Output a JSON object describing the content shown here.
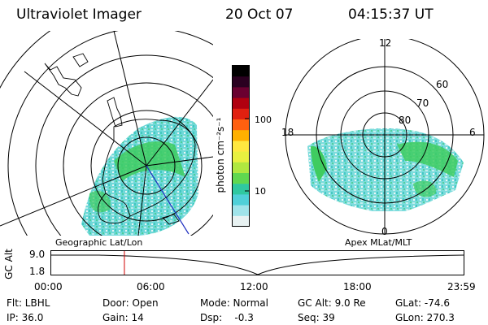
{
  "header": {
    "title": "Ultraviolet Imager",
    "date": "20 Oct 07",
    "time": "04:15:37 UT"
  },
  "left_panel": {
    "label": "Geographic Lat/Lon"
  },
  "right_panel": {
    "label": "Apex MLat/MLT",
    "mlt_labels": {
      "top": "12",
      "left": "18",
      "right": "6",
      "bottom": "0"
    },
    "lat_labels": [
      "60",
      "70",
      "80"
    ]
  },
  "colorbar": {
    "unit_label": "photon cm⁻²s⁻¹",
    "tick_labels": [
      "100",
      "10"
    ],
    "colors": [
      "#000000",
      "#2a0020",
      "#6a0030",
      "#b00010",
      "#e02010",
      "#ff6010",
      "#ffb000",
      "#ffe840",
      "#e8f040",
      "#b0e840",
      "#60d850",
      "#30c8a0",
      "#50d0d8",
      "#a0e4ea",
      "#e8f2f2"
    ]
  },
  "timeline": {
    "y_axis_label": "GC Alt",
    "y_ticks": [
      "9.0",
      "1.8"
    ],
    "x_ticks": [
      "00:00",
      "06:00",
      "12:00",
      "18:00",
      "23:59"
    ],
    "current_time_fraction": 0.1774
  },
  "info": {
    "filter": "Flt: LBHL",
    "ip": "IP: 36.0",
    "door": "Door: Open",
    "gain": "Gain: 14",
    "mode": "Mode: Normal",
    "dsp": "Dsp:    -0.3",
    "gc_alt": "GC Alt: 9.0 Re",
    "seq": "Seq: 39",
    "glat": "GLat: -74.6",
    "glon": "GLon: 270.3"
  }
}
